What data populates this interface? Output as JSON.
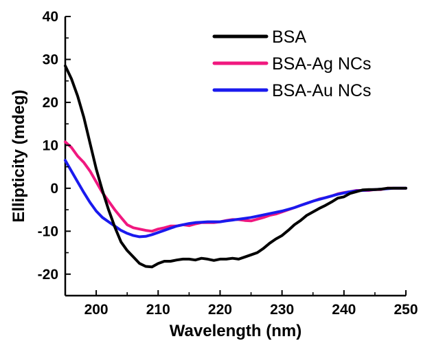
{
  "chart_data": {
    "type": "line",
    "xlabel": "Wavelength (nm)",
    "ylabel": "Ellipticity (mdeg)",
    "xlim": [
      195,
      250
    ],
    "ylim": [
      -25,
      40
    ],
    "xticks": [
      200,
      210,
      220,
      230,
      240,
      250
    ],
    "yticks": [
      -20,
      -10,
      0,
      10,
      20,
      30,
      40
    ],
    "grid": false,
    "legend": "top-right",
    "series": [
      {
        "name": "BSA",
        "color": "#000000",
        "x": [
          195,
          196,
          197,
          198,
          199,
          200,
          201,
          202,
          203,
          204,
          205,
          206,
          207,
          208,
          209,
          210,
          211,
          212,
          213,
          214,
          215,
          216,
          217,
          218,
          219,
          220,
          221,
          222,
          223,
          224,
          225,
          226,
          227,
          228,
          229,
          230,
          231,
          232,
          233,
          234,
          235,
          236,
          237,
          238,
          239,
          240,
          241,
          242,
          243,
          244,
          245,
          246,
          247,
          248,
          249,
          250
        ],
        "values": [
          28.5,
          25.5,
          21.5,
          16.5,
          10.5,
          4.5,
          -0.5,
          -5,
          -9,
          -12.5,
          -14.5,
          -16,
          -17.5,
          -18.2,
          -18.3,
          -17.5,
          -17,
          -17,
          -16.7,
          -16.5,
          -16.5,
          -16.7,
          -16.3,
          -16.5,
          -16.8,
          -16.5,
          -16.5,
          -16.3,
          -16.5,
          -16,
          -15.5,
          -15,
          -14,
          -12.8,
          -11.8,
          -11,
          -9.8,
          -8.5,
          -7.5,
          -6.3,
          -5.5,
          -4.7,
          -4,
          -3.2,
          -2.3,
          -2,
          -1.2,
          -0.8,
          -0.4,
          -0.3,
          -0.3,
          -0.2,
          0,
          0,
          0,
          0
        ]
      },
      {
        "name": "BSA-Ag NCs",
        "color": "#f0187f",
        "x": [
          195,
          196,
          197,
          198,
          199,
          200,
          201,
          202,
          203,
          204,
          205,
          206,
          207,
          208,
          209,
          210,
          211,
          212,
          213,
          214,
          215,
          216,
          217,
          218,
          219,
          220,
          221,
          222,
          223,
          224,
          225,
          226,
          227,
          228,
          229,
          230,
          231,
          232,
          233,
          234,
          235,
          236,
          237,
          238,
          239,
          240,
          241,
          242,
          243,
          244,
          245,
          246,
          247,
          248,
          249,
          250
        ],
        "values": [
          10.8,
          9.5,
          7.5,
          6,
          4,
          1.5,
          -1,
          -3,
          -5,
          -6.8,
          -8.5,
          -9.2,
          -9.5,
          -9.8,
          -10,
          -9.5,
          -9.2,
          -8.8,
          -8.8,
          -8.5,
          -8.7,
          -8.3,
          -8,
          -8,
          -8,
          -7.8,
          -7.5,
          -7.3,
          -7.3,
          -7.5,
          -7.6,
          -7.2,
          -6.8,
          -6.3,
          -6,
          -5.5,
          -5,
          -4.5,
          -4,
          -3.5,
          -3,
          -2.5,
          -2.2,
          -1.8,
          -1.3,
          -1,
          -0.8,
          -0.5,
          -0.5,
          -0.5,
          -0.3,
          -0.3,
          0,
          0,
          0,
          0
        ]
      },
      {
        "name": "BSA-Au NCs",
        "color": "#1a1aee",
        "x": [
          195,
          196,
          197,
          198,
          199,
          200,
          201,
          202,
          203,
          204,
          205,
          206,
          207,
          208,
          209,
          210,
          211,
          212,
          213,
          214,
          215,
          216,
          217,
          218,
          219,
          220,
          221,
          222,
          223,
          224,
          225,
          226,
          227,
          228,
          229,
          230,
          231,
          232,
          233,
          234,
          235,
          236,
          237,
          238,
          239,
          240,
          241,
          242,
          243,
          244,
          245,
          246,
          247,
          248,
          249,
          250
        ],
        "values": [
          6.5,
          4,
          1.5,
          -1,
          -3.3,
          -5.3,
          -6.8,
          -7.8,
          -8.8,
          -9.8,
          -10.5,
          -11,
          -11.3,
          -11.2,
          -10.8,
          -10.3,
          -9.8,
          -9.3,
          -8.8,
          -8.5,
          -8.2,
          -8,
          -7.9,
          -7.8,
          -7.8,
          -7.8,
          -7.6,
          -7.4,
          -7.2,
          -7,
          -6.8,
          -6.5,
          -6.2,
          -5.9,
          -5.6,
          -5.3,
          -4.9,
          -4.5,
          -4,
          -3.5,
          -3,
          -2.6,
          -2.2,
          -1.8,
          -1.4,
          -1.1,
          -0.8,
          -0.6,
          -0.5,
          -0.4,
          -0.3,
          -0.2,
          -0.1,
          0,
          0,
          0
        ]
      }
    ]
  }
}
